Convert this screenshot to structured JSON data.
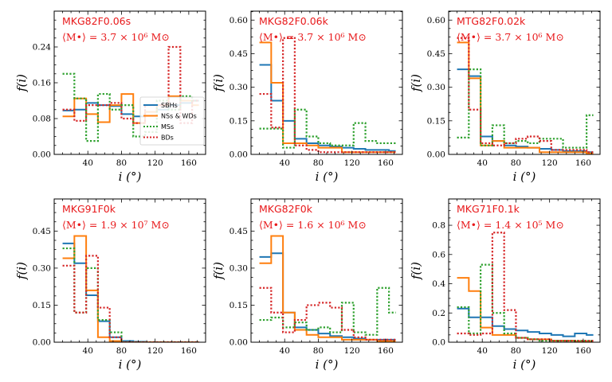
{
  "figure": {
    "xlabel": "i (°)",
    "ylabel": "f(i)",
    "legend_location": "center-right of first panel"
  },
  "colors": {
    "SBHs": "#1f77b4",
    "NSs & WDs": "#ff7f0e",
    "MSs": "#2ca02c",
    "BDs": "#d62728",
    "title": "#e8191b"
  },
  "chart_data": [
    {
      "type": "step-histogram",
      "title": "MKG82F0.06s",
      "mass_label": "⟨M•⟩ = 3.7 × 10⁶ M⊙",
      "xlabel": "i (°)",
      "ylabel": "f(i)",
      "xlim": [
        0,
        180
      ],
      "ylim": [
        0,
        0.32
      ],
      "xticks": [
        "40",
        "80",
        "120",
        "160"
      ],
      "yticks": [
        "0.00",
        "0.08",
        "0.16",
        "0.24"
      ],
      "bin_edges": [
        10,
        24,
        38,
        52,
        66,
        80,
        94,
        108,
        122,
        136,
        150,
        164,
        172
      ],
      "legend": [
        "SBHs",
        "NSs & WDs",
        "MSs",
        "BDs"
      ],
      "series": [
        {
          "name": "SBHs",
          "style": "solid",
          "values": [
            0.098,
            0.1,
            0.115,
            0.11,
            0.108,
            0.09,
            0.085,
            0.095,
            0.1,
            0.11,
            0.115,
            0.12
          ]
        },
        {
          "name": "NSs & WDs",
          "style": "solid",
          "values": [
            0.085,
            0.125,
            0.09,
            0.072,
            0.11,
            0.135,
            0.07,
            0.095,
            0.11,
            0.13,
            0.12,
            0.11
          ]
        },
        {
          "name": "MSs",
          "style": "dotted",
          "values": [
            0.18,
            0.125,
            0.03,
            0.135,
            0.1,
            0.11,
            0.04,
            0.05,
            0.12,
            0.1,
            0.13,
            0.12
          ]
        },
        {
          "name": "BDs",
          "style": "dotted",
          "values": [
            0.1,
            0.075,
            0.11,
            0.11,
            0.115,
            0.08,
            0.07,
            0.11,
            0.11,
            0.24,
            0.07,
            0.12
          ]
        }
      ]
    },
    {
      "type": "step-histogram",
      "title": "MKG82F0.06k",
      "mass_label": "⟨M•⟩ = 3.7 × 10⁶ M⊙",
      "xlabel": "i (°)",
      "ylabel": "f(i)",
      "xlim": [
        0,
        180
      ],
      "ylim": [
        0,
        0.64
      ],
      "xticks": [
        "40",
        "80",
        "120",
        "160"
      ],
      "yticks": [
        "0.00",
        "0.15",
        "0.30",
        "0.45",
        "0.60"
      ],
      "bin_edges": [
        10,
        24,
        38,
        52,
        66,
        80,
        94,
        108,
        122,
        136,
        150,
        164,
        172
      ],
      "series": [
        {
          "name": "SBHs",
          "style": "solid",
          "values": [
            0.4,
            0.24,
            0.15,
            0.07,
            0.05,
            0.04,
            0.035,
            0.03,
            0.025,
            0.02,
            0.02,
            0.015
          ]
        },
        {
          "name": "NSs & WDs",
          "style": "solid",
          "values": [
            0.5,
            0.32,
            0.05,
            0.05,
            0.04,
            0.03,
            0.03,
            0.01,
            0.01,
            0.01,
            0.01,
            0.01
          ]
        },
        {
          "name": "MSs",
          "style": "dotted",
          "values": [
            0.115,
            0.115,
            0.03,
            0.2,
            0.08,
            0.05,
            0.04,
            0.04,
            0.14,
            0.06,
            0.05,
            0.05
          ]
        },
        {
          "name": "BDs",
          "style": "dotted",
          "values": [
            0.27,
            0.12,
            0.52,
            0.04,
            0.02,
            0.01,
            0.01,
            0.01,
            0.01,
            0.01,
            0.01,
            0.01
          ]
        }
      ]
    },
    {
      "type": "step-histogram",
      "title": "MTG82F0.02k",
      "mass_label": "⟨M•⟩ = 3.7 × 10⁶ M⊙",
      "xlabel": "i (°)",
      "ylabel": "f(i)",
      "xlim": [
        0,
        180
      ],
      "ylim": [
        0,
        0.64
      ],
      "xticks": [
        "40",
        "80",
        "120",
        "160"
      ],
      "yticks": [
        "0.00",
        "0.15",
        "0.30",
        "0.45",
        "0.60"
      ],
      "bin_edges": [
        10,
        24,
        38,
        52,
        66,
        80,
        94,
        108,
        122,
        136,
        150,
        164,
        172
      ],
      "series": [
        {
          "name": "SBHs",
          "style": "solid",
          "values": [
            0.38,
            0.35,
            0.08,
            0.06,
            0.04,
            0.035,
            0.03,
            0.025,
            0.02,
            0.015,
            0.015,
            0.01
          ]
        },
        {
          "name": "NSs & WDs",
          "style": "solid",
          "values": [
            0.5,
            0.34,
            0.04,
            0.06,
            0.03,
            0.03,
            0.03,
            0.01,
            0.01,
            0.01,
            0.01,
            0.005
          ]
        },
        {
          "name": "MSs",
          "style": "dotted",
          "values": [
            0.075,
            0.38,
            0.04,
            0.13,
            0.05,
            0.06,
            0.05,
            0.07,
            0.07,
            0.03,
            0.03,
            0.175
          ]
        },
        {
          "name": "BDs",
          "style": "dotted",
          "values": [
            0.52,
            0.2,
            0.05,
            0.04,
            0.05,
            0.07,
            0.08,
            0.06,
            0.02,
            0.02,
            0.02,
            0.01
          ]
        }
      ]
    },
    {
      "type": "step-histogram",
      "title": "MKG91F0k",
      "mass_label": "⟨M•⟩ = 1.9 × 10⁷ M⊙",
      "xlabel": "i (°)",
      "ylabel": "f(i)",
      "xlim": [
        0,
        180
      ],
      "ylim": [
        0,
        0.58
      ],
      "xticks": [
        "40",
        "80",
        "120",
        "160"
      ],
      "yticks": [
        "0.00",
        "0.15",
        "0.30",
        "0.45"
      ],
      "bin_edges": [
        10,
        24,
        38,
        52,
        66,
        80,
        94,
        108,
        122,
        136,
        150,
        164,
        172
      ],
      "series": [
        {
          "name": "SBHs",
          "style": "solid",
          "values": [
            0.4,
            0.32,
            0.19,
            0.085,
            0.02,
            0.005,
            0.002,
            0.0,
            0.0,
            0.0,
            0.0,
            0.0
          ]
        },
        {
          "name": "NSs & WDs",
          "style": "solid",
          "values": [
            0.34,
            0.43,
            0.21,
            0.02,
            0.005,
            0.0,
            0.0,
            0.0,
            0.0,
            0.0,
            0.0,
            0.0
          ]
        },
        {
          "name": "MSs",
          "style": "dotted",
          "values": [
            0.38,
            0.12,
            0.3,
            0.09,
            0.04,
            0.0,
            0.0,
            0.0,
            0.0,
            0.0,
            0.0,
            0.0
          ]
        },
        {
          "name": "BDs",
          "style": "dotted",
          "values": [
            0.31,
            0.12,
            0.35,
            0.14,
            0.02,
            0.0,
            0.0,
            0.0,
            0.0,
            0.0,
            0.0,
            0.0
          ]
        }
      ]
    },
    {
      "type": "step-histogram",
      "title": "MKG82F0k",
      "mass_label": "⟨M•⟩ = 1.6 × 10⁶ M⊙",
      "xlabel": "i (°)",
      "ylabel": "f(i)",
      "xlim": [
        0,
        180
      ],
      "ylim": [
        0,
        0.58
      ],
      "xticks": [
        "40",
        "80",
        "120",
        "160"
      ],
      "yticks": [
        "0.00",
        "0.15",
        "0.30",
        "0.45"
      ],
      "bin_edges": [
        10,
        24,
        38,
        52,
        66,
        80,
        94,
        108,
        122,
        136,
        150,
        164,
        172
      ],
      "series": [
        {
          "name": "SBHs",
          "style": "solid",
          "values": [
            0.345,
            0.36,
            0.12,
            0.06,
            0.05,
            0.035,
            0.025,
            0.02,
            0.015,
            0.01,
            0.01,
            0.01
          ]
        },
        {
          "name": "NSs & WDs",
          "style": "solid",
          "values": [
            0.32,
            0.43,
            0.12,
            0.05,
            0.03,
            0.02,
            0.02,
            0.01,
            0.01,
            0.01,
            0.005,
            0.005
          ]
        },
        {
          "name": "MSs",
          "style": "dotted",
          "values": [
            0.09,
            0.1,
            0.06,
            0.08,
            0.05,
            0.06,
            0.04,
            0.16,
            0.04,
            0.03,
            0.22,
            0.12
          ]
        },
        {
          "name": "BDs",
          "style": "dotted",
          "values": [
            0.22,
            0.12,
            0.04,
            0.09,
            0.15,
            0.16,
            0.14,
            0.05,
            0.02,
            0.01,
            0.01,
            0.01
          ]
        }
      ]
    },
    {
      "type": "step-histogram",
      "title": "MKG71F0.1k",
      "mass_label": "⟨M•⟩ = 1.4 × 10⁵ M⊙",
      "xlabel": "i (°)",
      "ylabel": "f(i)",
      "xlim": [
        0,
        180
      ],
      "ylim": [
        0,
        0.98
      ],
      "xticks": [
        "40",
        "80",
        "120",
        "160"
      ],
      "yticks": [
        "0.0",
        "0.2",
        "0.4",
        "0.6",
        "0.8"
      ],
      "bin_edges": [
        10,
        24,
        38,
        52,
        66,
        80,
        94,
        108,
        122,
        136,
        150,
        164,
        172
      ],
      "series": [
        {
          "name": "SBHs",
          "style": "solid",
          "values": [
            0.23,
            0.17,
            0.17,
            0.11,
            0.09,
            0.08,
            0.07,
            0.06,
            0.05,
            0.04,
            0.06,
            0.05
          ]
        },
        {
          "name": "NSs & WDs",
          "style": "solid",
          "values": [
            0.44,
            0.35,
            0.1,
            0.05,
            0.05,
            0.03,
            0.02,
            0.02,
            0.01,
            0.01,
            0.005,
            0.005
          ]
        },
        {
          "name": "MSs",
          "style": "dotted",
          "values": [
            0.24,
            0.06,
            0.53,
            0.2,
            0.06,
            0.03,
            0.02,
            0.01,
            0.01,
            0.01,
            0.01,
            0.01
          ]
        },
        {
          "name": "BDs",
          "style": "dotted",
          "values": [
            0.06,
            0.05,
            0.06,
            0.75,
            0.22,
            0.03,
            0.02,
            0.02,
            0.01,
            0.01,
            0.01,
            0.01
          ]
        }
      ]
    }
  ]
}
